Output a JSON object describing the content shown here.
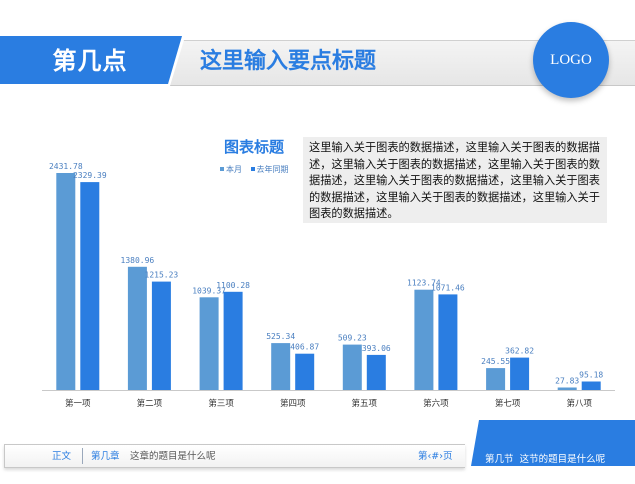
{
  "header": {
    "section_label": "第几点",
    "title": "这里输入要点标题",
    "logo": "LOGO"
  },
  "description": "这里输入关于图表的数据描述，这里输入关于图表的数据描述，这里输入关于图表的数据描述，这里输入关于图表的数据描述，这里输入关于图表的数据描述，这里输入关于图表的数据描述，这里输入关于图表的数据描述，这里输入关于图表的数据描述。",
  "chart_data": {
    "type": "bar",
    "title": "图表标题",
    "categories": [
      "第一项",
      "第二项",
      "第三项",
      "第四项",
      "第五项",
      "第六项",
      "第七项",
      "第八项"
    ],
    "series": [
      {
        "name": "本月",
        "values": [
          2431.78,
          1380.96,
          1039.37,
          525.34,
          509.23,
          1123.74,
          245.55,
          27.83
        ],
        "labels": [
          "2431.78",
          "1380.96",
          "1039.37",
          "525.34",
          "509.23",
          "1123.74",
          "245.55",
          "27.83"
        ]
      },
      {
        "name": "去年同期",
        "values": [
          2329.39,
          1215.23,
          1100.28,
          406.87,
          393.06,
          1071.46,
          362.82,
          95.18
        ],
        "labels": [
          "2329.39",
          "1215.23",
          "1100.28",
          "406.87",
          "393.06",
          "1071.46",
          "362.82",
          "95.18"
        ]
      }
    ],
    "ylim": [
      0,
      2431.78
    ],
    "legend": "top",
    "grid": false,
    "colors": [
      "#5b9bd5",
      "#2a7de1"
    ]
  },
  "footer": {
    "body_label": "正文",
    "chapter_label": "第几章",
    "chapter_title": "这章的题目是什么呢",
    "page_label": "第‹#›页",
    "section_label": "第几节",
    "section_title": "这节的题目是什么呢"
  },
  "colors": {
    "accent": "#2a7de1",
    "series1": "#5b9bd5",
    "series2": "#2a7de1"
  }
}
